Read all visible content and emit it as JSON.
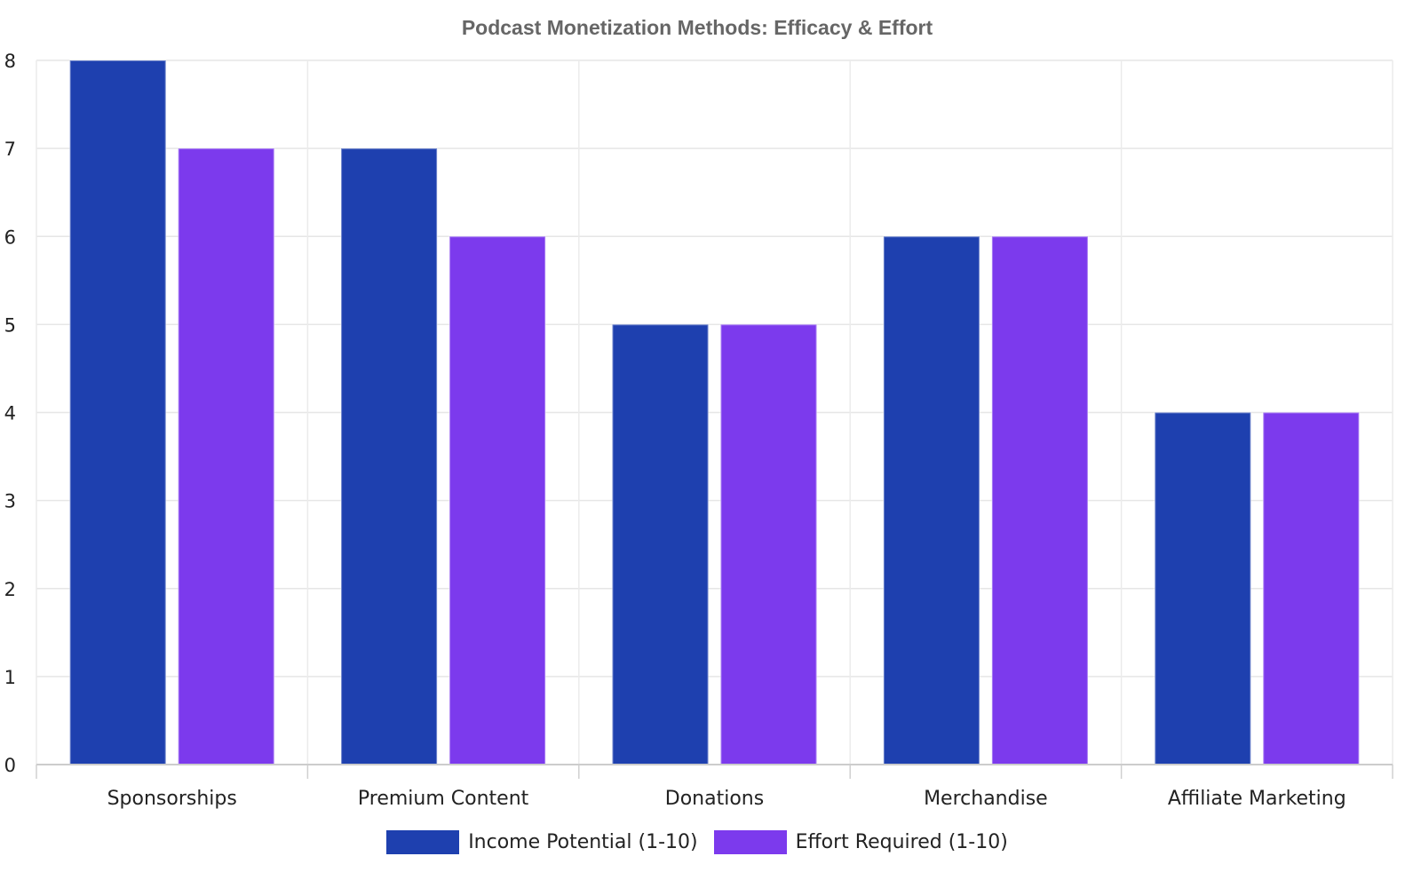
{
  "chart_data": {
    "type": "bar",
    "title": "Podcast Monetization Methods: Efficacy & Effort",
    "categories": [
      "Sponsorships",
      "Premium Content",
      "Donations",
      "Merchandise",
      "Affiliate Marketing"
    ],
    "series": [
      {
        "name": "Income Potential (1-10)",
        "values": [
          8,
          7,
          5,
          6,
          4
        ],
        "color": "#1e40af"
      },
      {
        "name": "Effort Required (1-10)",
        "values": [
          7,
          6,
          5,
          6,
          4
        ],
        "color": "#7c3aed"
      }
    ],
    "ylim": [
      0,
      8
    ],
    "yticks": [
      "0",
      "1",
      "2",
      "3",
      "4",
      "5",
      "6",
      "7",
      "8"
    ],
    "xlabel": "",
    "ylabel": "",
    "grid": true,
    "legend_position": "bottom"
  }
}
